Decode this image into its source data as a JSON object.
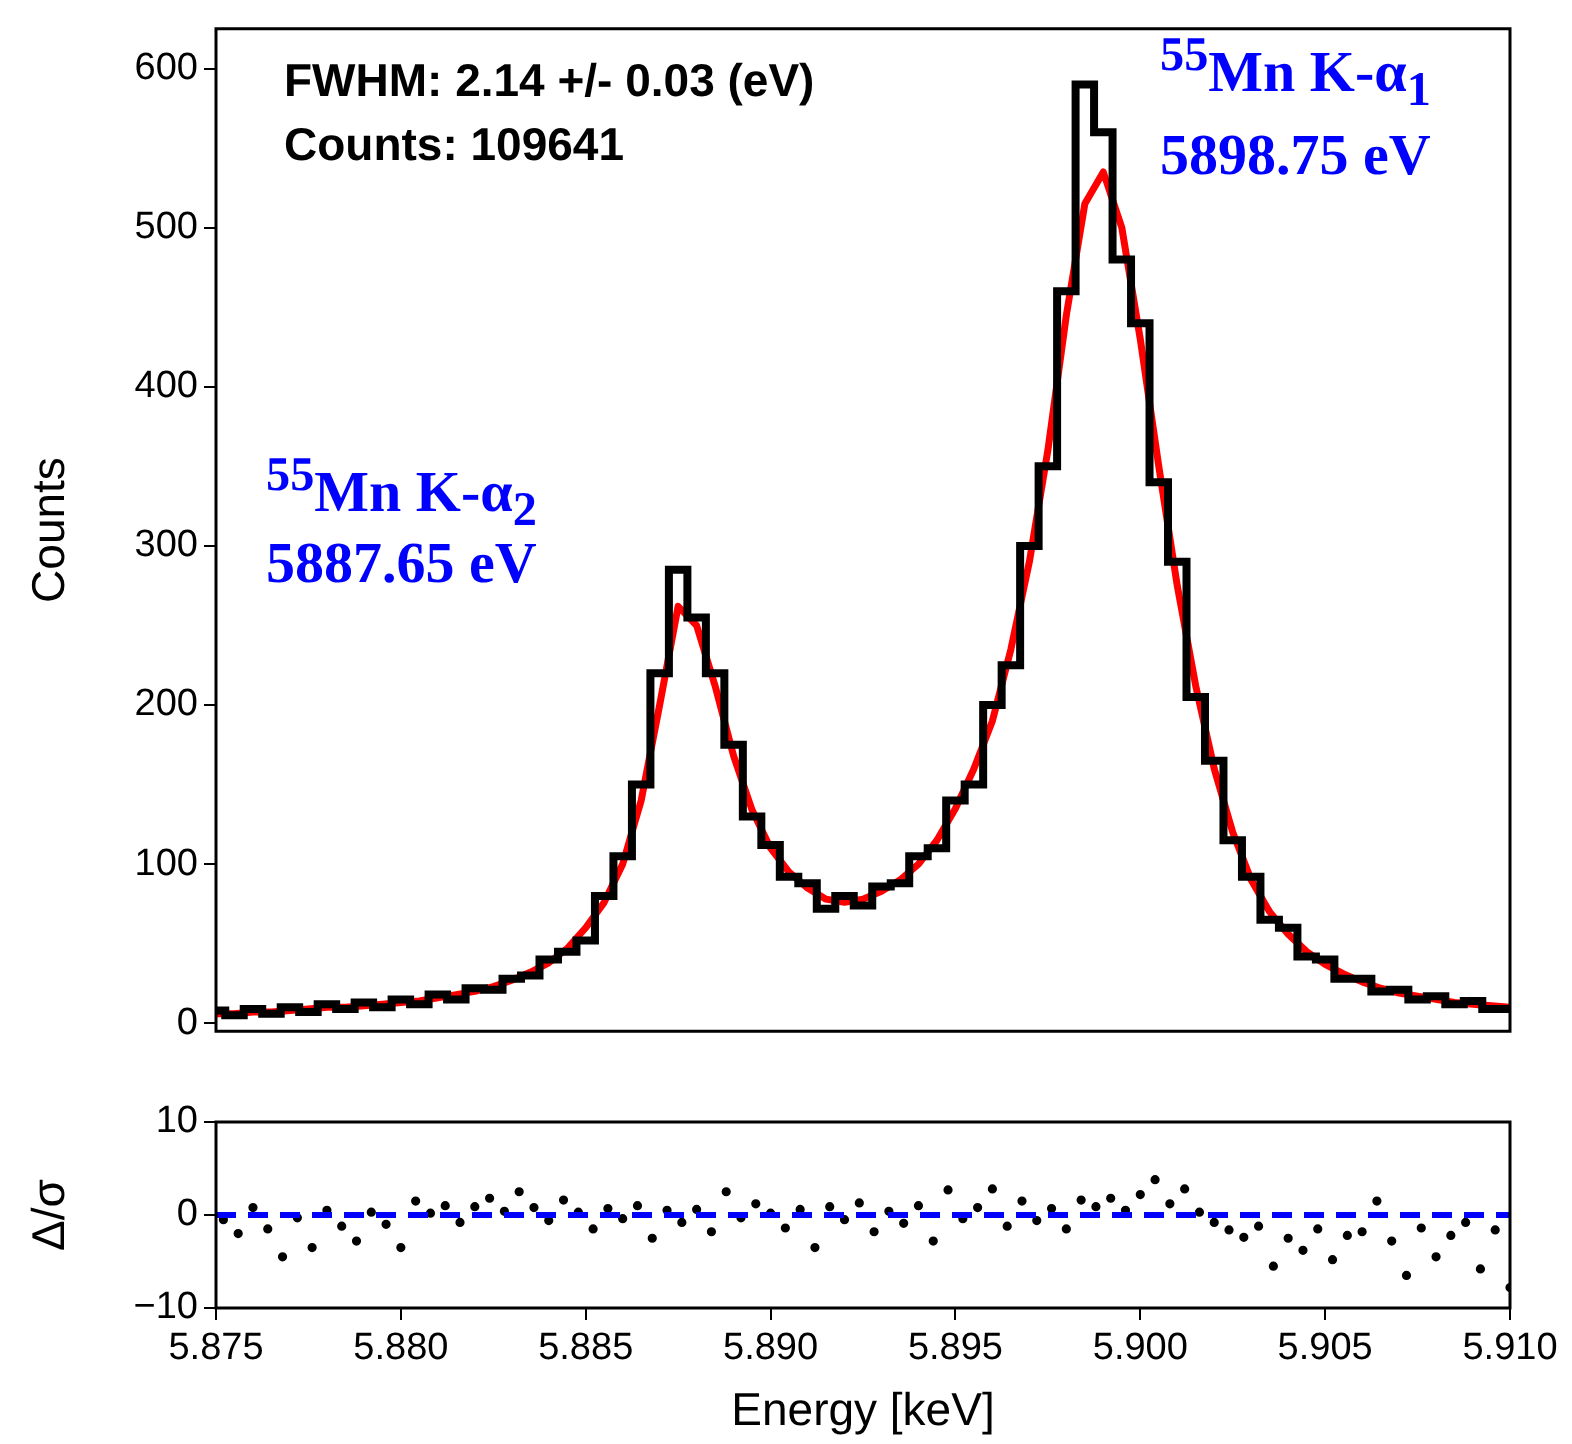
{
  "chart_data": [
    {
      "type": "step",
      "ylabel": "Counts",
      "xlim": [
        5.875,
        5.91
      ],
      "ylim": [
        -5,
        625
      ],
      "yticks": [
        0,
        100,
        200,
        300,
        400,
        500,
        600
      ],
      "tick_labels": "y",
      "grid": false,
      "legend": false,
      "annotations": [
        "FWHM:  2.14 +/- 0.03 (eV)",
        "Counts: 109641",
        "$^{55}$Mn K-α$_{1}$",
        "5898.75 eV",
        "$^{55}$Mn K-α$_{2}$",
        "5887.65 eV"
      ],
      "x": [
        5.875,
        5.8755,
        5.876,
        5.8765,
        5.877,
        5.8775,
        5.878,
        5.8785,
        5.879,
        5.8795,
        5.88,
        5.8805,
        5.881,
        5.8815,
        5.882,
        5.8825,
        5.883,
        5.8835,
        5.884,
        5.8845,
        5.885,
        5.8855,
        5.886,
        5.8865,
        5.887,
        5.8875,
        5.888,
        5.8885,
        5.889,
        5.8895,
        5.89,
        5.8905,
        5.891,
        5.8915,
        5.892,
        5.8925,
        5.893,
        5.8935,
        5.894,
        5.8945,
        5.895,
        5.8955,
        5.896,
        5.8965,
        5.897,
        5.8975,
        5.898,
        5.8985,
        5.899,
        5.8995,
        5.9,
        5.9005,
        5.901,
        5.9015,
        5.902,
        5.9025,
        5.903,
        5.9035,
        5.904,
        5.9045,
        5.905,
        5.9055,
        5.906,
        5.9065,
        5.907,
        5.9075,
        5.908,
        5.9085,
        5.909,
        5.9095,
        5.91
      ],
      "series": [
        {
          "color": "#000000",
          "values": [
            8,
            5,
            9,
            6,
            10,
            7,
            12,
            9,
            13,
            10,
            15,
            12,
            18,
            15,
            22,
            21,
            28,
            30,
            40,
            45,
            52,
            80,
            105,
            150,
            220,
            285,
            255,
            220,
            175,
            130,
            112,
            92,
            88,
            72,
            80,
            74,
            86,
            88,
            105,
            110,
            140,
            150,
            200,
            225,
            300,
            350,
            460,
            590,
            560,
            480,
            440,
            340,
            290,
            205,
            165,
            115,
            92,
            65,
            60,
            42,
            40,
            28,
            28,
            20,
            21,
            15,
            17,
            12,
            14,
            9,
            9
          ]
        },
        {
          "type": "line",
          "color": "#ff0000",
          "values": [
            6,
            6,
            7,
            7,
            8,
            9,
            10,
            10,
            11,
            12,
            13,
            14,
            16,
            18,
            20,
            23,
            27,
            32,
            38,
            47,
            60,
            76,
            100,
            140,
            200,
            262,
            250,
            212,
            168,
            134,
            110,
            95,
            85,
            78,
            76,
            78,
            83,
            90,
            100,
            115,
            135,
            160,
            190,
            235,
            290,
            360,
            445,
            515,
            535,
            500,
            430,
            350,
            275,
            212,
            160,
            120,
            90,
            70,
            56,
            45,
            37,
            31,
            26,
            22,
            19,
            17,
            15,
            13,
            12,
            11,
            10
          ]
        }
      ]
    },
    {
      "type": "scatter",
      "xlabel": "Energy [keV]",
      "ylabel": "Δ/σ",
      "xlim": [
        5.875,
        5.91
      ],
      "ylim": [
        -10,
        10
      ],
      "xticks": [
        5.875,
        {
          "value": 5.88,
          "label": "5.880"
        },
        5.885,
        {
          "value": 5.89,
          "label": "5.890"
        },
        5.895,
        {
          "value": 5.9,
          "label": "5.900"
        },
        5.905,
        {
          "value": 5.91,
          "label": "5.910"
        }
      ],
      "yticks": [
        {
          "value": -10,
          "label": "−10"
        },
        0,
        10
      ],
      "grid": false,
      "legend": false,
      "marker": "circle",
      "ref_lines": [
        {
          "axis": "y",
          "value": 0,
          "color": "#0000ff",
          "line_style": "dashed"
        }
      ],
      "x": [
        5.8752,
        5.8756,
        5.876,
        5.8764,
        5.8768,
        5.8772,
        5.8776,
        5.878,
        5.8784,
        5.8788,
        5.8792,
        5.8796,
        5.88,
        5.8804,
        5.8808,
        5.8812,
        5.8816,
        5.882,
        5.8824,
        5.8828,
        5.8832,
        5.8836,
        5.884,
        5.8844,
        5.8848,
        5.8852,
        5.8856,
        5.886,
        5.8864,
        5.8868,
        5.8872,
        5.8876,
        5.888,
        5.8884,
        5.8888,
        5.8892,
        5.8896,
        5.89,
        5.8904,
        5.8908,
        5.8912,
        5.8916,
        5.892,
        5.8924,
        5.8928,
        5.8932,
        5.8936,
        5.894,
        5.8944,
        5.8948,
        5.8952,
        5.8956,
        5.896,
        5.8964,
        5.8968,
        5.8972,
        5.8976,
        5.898,
        5.8984,
        5.8988,
        5.8992,
        5.8996,
        5.9,
        5.9004,
        5.9008,
        5.9012,
        5.9016,
        5.902,
        5.9024,
        5.9028,
        5.9032,
        5.9036,
        5.904,
        5.9044,
        5.9048,
        5.9052,
        5.9056,
        5.906,
        5.9064,
        5.9068,
        5.9072,
        5.9076,
        5.908,
        5.9084,
        5.9088,
        5.9092,
        5.9096,
        5.91
      ],
      "series": [
        {
          "color": "#000000",
          "values": [
            -0.5,
            -2,
            0.8,
            -1.5,
            -4.5,
            -0.3,
            -3.5,
            0.5,
            -1.2,
            -2.8,
            0.3,
            -1,
            -3.5,
            1.5,
            0.2,
            1,
            -0.8,
            0.9,
            1.8,
            0.4,
            2.5,
            0.8,
            -0.6,
            1.6,
            0.3,
            -1.5,
            0.7,
            -0.4,
            1,
            -2.5,
            0.5,
            -0.8,
            0.6,
            -1.8,
            2.5,
            -0.3,
            1.2,
            0.2,
            -1.4,
            0.6,
            -3.5,
            0.9,
            -0.5,
            1.3,
            -1.8,
            0.4,
            -0.9,
            1,
            -2.8,
            2.7,
            -0.4,
            0.8,
            2.8,
            -1.2,
            1.5,
            -0.6,
            0.7,
            -1.5,
            1.6,
            0.9,
            1.8,
            0.5,
            2.2,
            3.8,
            1.2,
            2.8,
            0.3,
            -0.8,
            -1.6,
            -2.4,
            -1.2,
            -5.5,
            -2.5,
            -3.8,
            -1.5,
            -4.8,
            -2.2,
            -1.8,
            1.5,
            -2.8,
            -6.5,
            -1.4,
            -4.5,
            -2.2,
            -0.8,
            -5.8,
            -1.6,
            -7.8
          ]
        }
      ]
    }
  ]
}
